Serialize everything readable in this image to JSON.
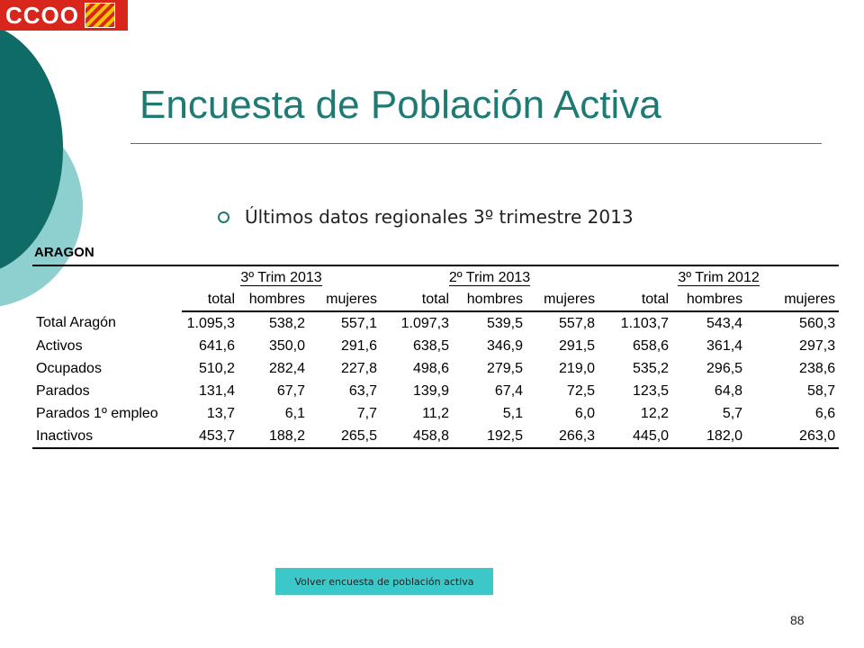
{
  "logo": {
    "text": "CCOO"
  },
  "slide": {
    "title": "Encuesta de Población Activa",
    "bullet": "Últimos datos regionales 3º trimestre 2013",
    "region_label": "ARAGON",
    "page_number": "88"
  },
  "table": {
    "groups": [
      "3º Trim 2013",
      "2º Trim 2013",
      "3º Trim 2012"
    ],
    "subcolumns": [
      "total",
      "hombres",
      "mujeres"
    ],
    "rows": [
      {
        "label": "Total Aragón",
        "values": [
          "1.095,3",
          "538,2",
          "557,1",
          "1.097,3",
          "539,5",
          "557,8",
          "1.103,7",
          "543,4",
          "560,3"
        ]
      },
      {
        "label": "Activos",
        "values": [
          "641,6",
          "350,0",
          "291,6",
          "638,5",
          "346,9",
          "291,5",
          "658,6",
          "361,4",
          "297,3"
        ]
      },
      {
        "label": "Ocupados",
        "values": [
          "510,2",
          "282,4",
          "227,8",
          "498,6",
          "279,5",
          "219,0",
          "535,2",
          "296,5",
          "238,6"
        ]
      },
      {
        "label": "Parados",
        "values": [
          "131,4",
          "67,7",
          "63,7",
          "139,9",
          "67,4",
          "72,5",
          "123,5",
          "64,8",
          "58,7"
        ]
      },
      {
        "label": "Parados 1º empleo",
        "values": [
          "13,7",
          "6,1",
          "7,7",
          "11,2",
          "5,1",
          "6,0",
          "12,2",
          "5,7",
          "6,6"
        ]
      },
      {
        "label": "Inactivos",
        "values": [
          "453,7",
          "188,2",
          "265,5",
          "458,8",
          "192,5",
          "266,3",
          "445,0",
          "182,0",
          "263,0"
        ]
      }
    ]
  },
  "back_button": {
    "label": "Volver encuesta de población  activa"
  },
  "colors": {
    "title": "#1e7a72",
    "button": "#3cc8c8",
    "logo": "#d9261c",
    "deco_dark": "#0e6b66",
    "deco_light": "#8ecfcf"
  }
}
